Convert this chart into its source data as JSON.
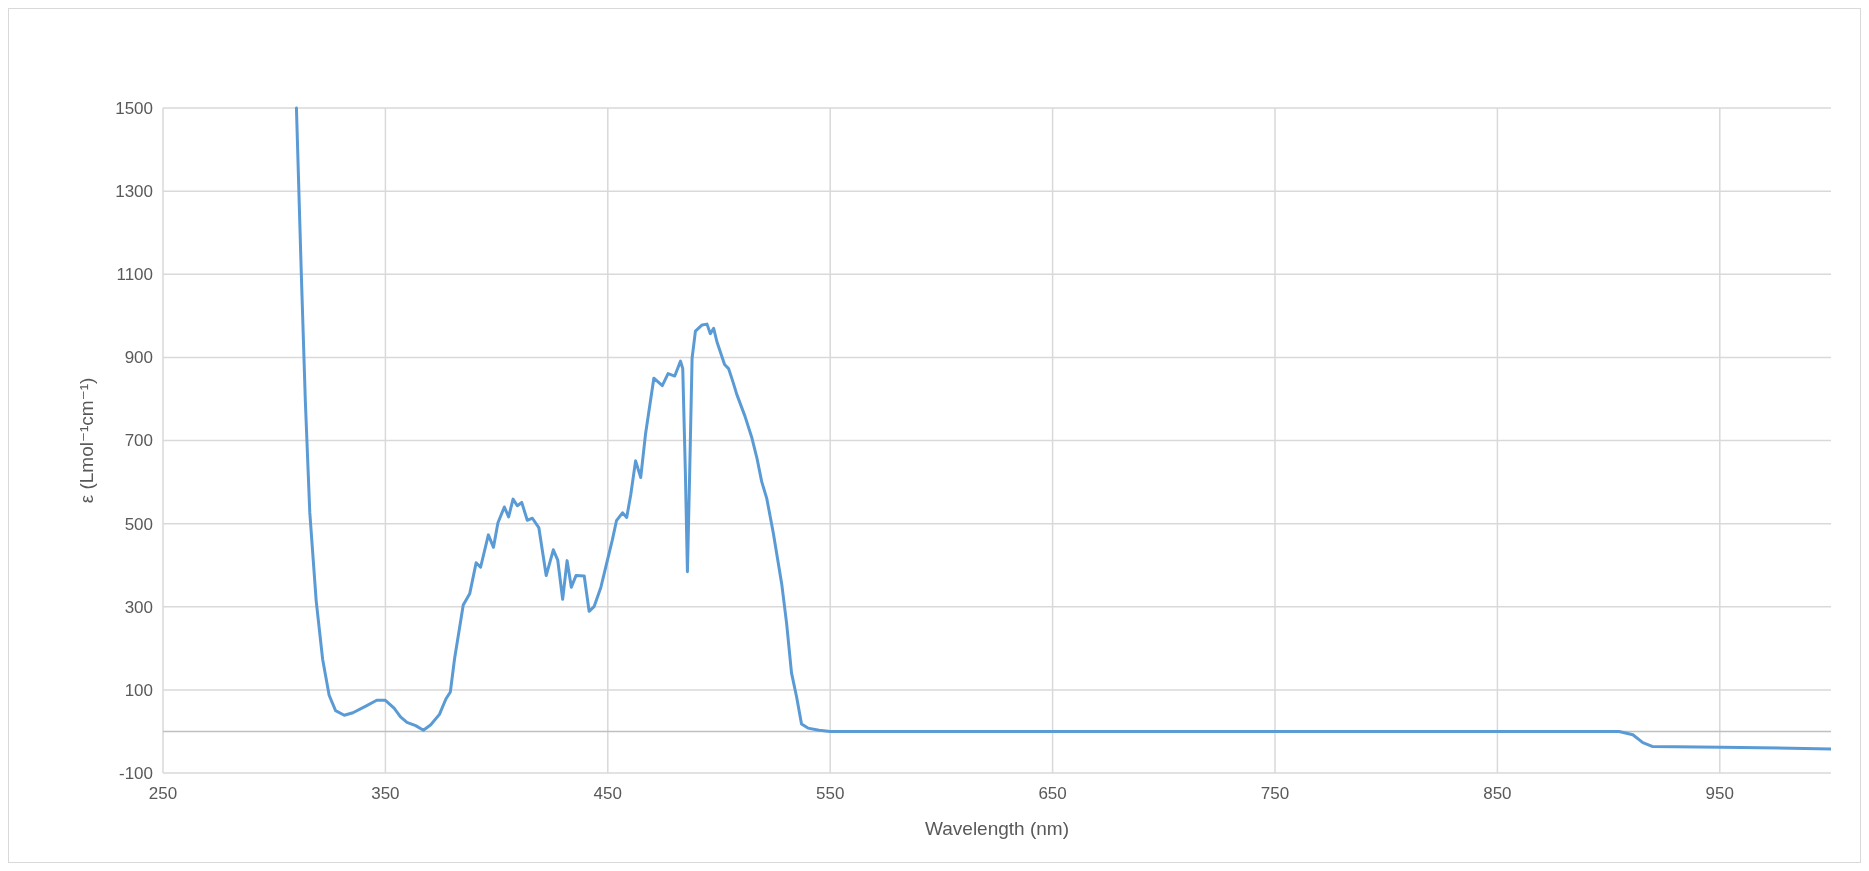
{
  "chart_data": {
    "type": "line",
    "xlabel": "Wavelength (nm)",
    "ylabel": "ε (Lmol⁻¹cm⁻¹)",
    "xlim": [
      250,
      1000
    ],
    "xticks": [
      250,
      350,
      450,
      550,
      650,
      750,
      850,
      950
    ],
    "ylim": [
      -100,
      1500
    ],
    "yticks": [
      -100,
      100,
      300,
      500,
      700,
      900,
      1100,
      1300,
      1500
    ],
    "grid": true,
    "marker": "none",
    "line_style": "solid",
    "series": [
      {
        "color": "#5b9bd5",
        "x": [
          310,
          312.1,
          314,
          316,
          318.9,
          321.8,
          324.7,
          327.6,
          331.5,
          335.4,
          341.2,
          346.1,
          350,
          353.9,
          356.8,
          359.7,
          363.6,
          367.1,
          370.4,
          374.3,
          377.2,
          379.2,
          381.1,
          385,
          387.9,
          390.8,
          392.8,
          396.3,
          398.6,
          400.6,
          403.5,
          405.4,
          407.4,
          409.3,
          411.3,
          413.8,
          416.1,
          419,
          422.3,
          425.5,
          427.5,
          429.7,
          431.7,
          433.6,
          435.7,
          439.4,
          441.6,
          443.9,
          446.9,
          449.1,
          452.1,
          453.9,
          456.6,
          458.5,
          460.3,
          462.5,
          464.8,
          467,
          470.7,
          474.5,
          477.1,
          480.1,
          482.7,
          483.7,
          484.9,
          485.8,
          486.8,
          487.9,
          489.4,
          492.4,
          494.6,
          496.1,
          497.6,
          499.1,
          502.5,
          504.3,
          506.1,
          508,
          511.7,
          514.7,
          517,
          519.2,
          521.5,
          524.4,
          528.2,
          530.4,
          532.6,
          534.9,
          537.1,
          540,
          545,
          550,
          600,
          700,
          800,
          904.7,
          910.9,
          915.4,
          919.6,
          950.7,
          1000
        ],
        "values": [
          1500,
          1117,
          795,
          527,
          313,
          173,
          87,
          50,
          39,
          45,
          61,
          75,
          75,
          56,
          35,
          22,
          14,
          3,
          16,
          41,
          78,
          95,
          175,
          304,
          331,
          406,
          395,
          473,
          443,
          502,
          540,
          516,
          559,
          543,
          551,
          508,
          513,
          490,
          375,
          437,
          412,
          318,
          411,
          347,
          375,
          374,
          289,
          301,
          347,
          396,
          462,
          507,
          526,
          515,
          569,
          651,
          611,
          717,
          850,
          832,
          861,
          855,
          891,
          873,
          618,
          384,
          618,
          898,
          963,
          978,
          980,
          957,
          970,
          937,
          883,
          873,
          844,
          811,
          758,
          708,
          659,
          601,
          560,
          478,
          355,
          260,
          141,
          83,
          18,
          8,
          3,
          0,
          0,
          0,
          0,
          0,
          -8,
          -27,
          -36,
          -38,
          -42
        ]
      }
    ]
  }
}
